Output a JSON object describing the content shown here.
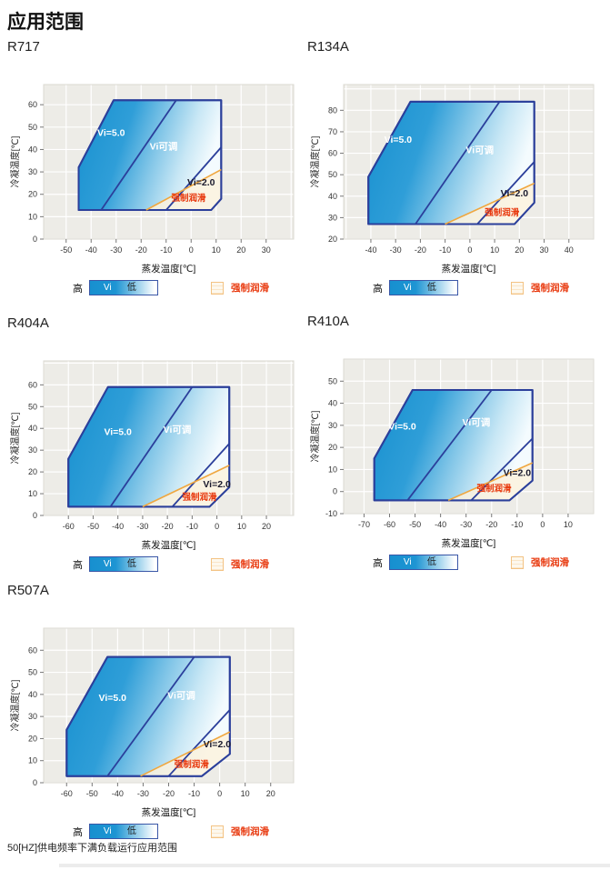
{
  "page": {
    "title": "应用范围",
    "footnote": "50[HZ]供电频率下满负载运行应用范围"
  },
  "axis": {
    "x_label": "蒸发温度[℃]",
    "y_label": "冷凝温度[℃]"
  },
  "legend": {
    "high": "高",
    "vi": "Vi",
    "low": "低",
    "forced_lubrication": "强制润滑"
  },
  "colors": {
    "region_blue": "#1790cf",
    "border_navy": "#2b3f9b",
    "orange_line": "#f0a73f",
    "red_text": "#e8380d",
    "plot_bg": "#edece7",
    "grid": "#ffffff"
  },
  "chart_data": [
    {
      "type": "area",
      "name": "R717",
      "x_range": [
        -59,
        41
      ],
      "y_range": [
        0,
        69
      ],
      "x_ticks": [
        -50,
        -40,
        -30,
        -20,
        -10,
        0,
        10,
        20,
        30
      ],
      "y_ticks": [
        0,
        10,
        20,
        30,
        40,
        50,
        60
      ],
      "envelope": [
        [
          -45,
          13
        ],
        [
          -45,
          32
        ],
        [
          -31,
          62
        ],
        [
          12,
          62
        ],
        [
          12,
          18
        ],
        [
          8,
          13
        ]
      ],
      "vi5_line": [
        [
          -36,
          13
        ],
        [
          -6,
          62
        ]
      ],
      "vi2_line": [
        [
          -10,
          13
        ],
        [
          12,
          41
        ]
      ],
      "forced_line": [
        [
          -18,
          13
        ],
        [
          12,
          31
        ]
      ],
      "forced_region": [
        [
          -18,
          13
        ],
        [
          12,
          31
        ],
        [
          12,
          18
        ],
        [
          8,
          13
        ]
      ],
      "labels": {
        "vi5": {
          "text": "Vi=5.0",
          "x": -32,
          "y": 46
        },
        "vi_adj": {
          "text": "Vi可调",
          "x": -11,
          "y": 40
        },
        "vi2": {
          "text": "Vi=2.0",
          "x": 4,
          "y": 24
        },
        "forced": {
          "text": "强制润滑",
          "x": -1,
          "y": 17
        }
      }
    },
    {
      "type": "area",
      "name": "R134A",
      "x_range": [
        -51,
        50
      ],
      "y_range": [
        20,
        92
      ],
      "x_ticks": [
        -40,
        -30,
        -20,
        -10,
        0,
        10,
        20,
        30,
        40
      ],
      "y_ticks": [
        20,
        30,
        40,
        50,
        60,
        70,
        80
      ],
      "envelope": [
        [
          -41,
          27
        ],
        [
          -41,
          49
        ],
        [
          -24,
          84
        ],
        [
          26,
          84
        ],
        [
          26,
          37
        ],
        [
          18,
          27
        ]
      ],
      "vi5_line": [
        [
          -22,
          27
        ],
        [
          12,
          84
        ]
      ],
      "vi2_line": [
        [
          3,
          27
        ],
        [
          26,
          56
        ]
      ],
      "forced_line": [
        [
          -10,
          27
        ],
        [
          26,
          46
        ]
      ],
      "forced_region": [
        [
          -10,
          27
        ],
        [
          26,
          46
        ],
        [
          26,
          37
        ],
        [
          18,
          27
        ]
      ],
      "labels": {
        "vi5": {
          "text": "Vi=5.0",
          "x": -29,
          "y": 65
        },
        "vi_adj": {
          "text": "Vi可调",
          "x": 4,
          "y": 60
        },
        "vi2": {
          "text": "Vi=2.0",
          "x": 18,
          "y": 40
        },
        "forced": {
          "text": "强制润滑",
          "x": 13,
          "y": 31
        }
      }
    },
    {
      "type": "area",
      "name": "R404A",
      "x_range": [
        -70,
        31
      ],
      "y_range": [
        0,
        71
      ],
      "x_ticks": [
        -60,
        -50,
        -40,
        -30,
        -20,
        -10,
        0,
        10,
        20
      ],
      "y_ticks": [
        0,
        10,
        20,
        30,
        40,
        50,
        60
      ],
      "envelope": [
        [
          -60,
          4
        ],
        [
          -60,
          26
        ],
        [
          -44,
          59
        ],
        [
          5,
          59
        ],
        [
          5,
          13
        ],
        [
          -3,
          4
        ]
      ],
      "vi5_line": [
        [
          -43,
          4
        ],
        [
          -10,
          59
        ]
      ],
      "vi2_line": [
        [
          -18,
          4
        ],
        [
          5,
          33
        ]
      ],
      "forced_line": [
        [
          -30,
          4
        ],
        [
          5,
          23
        ]
      ],
      "forced_region": [
        [
          -30,
          4
        ],
        [
          5,
          23
        ],
        [
          5,
          13
        ],
        [
          -3,
          4
        ]
      ],
      "labels": {
        "vi5": {
          "text": "Vi=5.0",
          "x": -40,
          "y": 37
        },
        "vi_adj": {
          "text": "Vi可调",
          "x": -16,
          "y": 38
        },
        "vi2": {
          "text": "Vi=2.0",
          "x": 0,
          "y": 13
        },
        "forced": {
          "text": "强制润滑",
          "x": -7,
          "y": 7
        }
      }
    },
    {
      "type": "area",
      "name": "R410A",
      "x_range": [
        -78,
        20
      ],
      "y_range": [
        -10,
        60
      ],
      "x_ticks": [
        -70,
        -60,
        -50,
        -40,
        -30,
        -20,
        -10,
        0,
        10
      ],
      "y_ticks": [
        -10,
        0,
        10,
        20,
        30,
        40,
        50
      ],
      "envelope": [
        [
          -66,
          -4
        ],
        [
          -66,
          15
        ],
        [
          -51,
          46
        ],
        [
          -4,
          46
        ],
        [
          -4,
          5
        ],
        [
          -13,
          -4
        ]
      ],
      "vi5_line": [
        [
          -53,
          -4
        ],
        [
          -20,
          46
        ]
      ],
      "vi2_line": [
        [
          -28,
          -4
        ],
        [
          -4,
          24
        ]
      ],
      "forced_line": [
        [
          -37,
          -4
        ],
        [
          -4,
          13
        ]
      ],
      "forced_region": [
        [
          -37,
          -4
        ],
        [
          -4,
          13
        ],
        [
          -4,
          5
        ],
        [
          -13,
          -4
        ]
      ],
      "labels": {
        "vi5": {
          "text": "Vi=5.0",
          "x": -55,
          "y": 28
        },
        "vi_adj": {
          "text": "Vi可调",
          "x": -26,
          "y": 30
        },
        "vi2": {
          "text": "Vi=2.0",
          "x": -10,
          "y": 7
        },
        "forced": {
          "text": "强制润滑",
          "x": -19,
          "y": 0
        }
      }
    },
    {
      "type": "area",
      "name": "R507A",
      "x_range": [
        -69,
        29
      ],
      "y_range": [
        0,
        70
      ],
      "x_ticks": [
        -60,
        -50,
        -40,
        -30,
        -20,
        -10,
        0,
        10,
        20
      ],
      "y_ticks": [
        0,
        10,
        20,
        30,
        40,
        50,
        60
      ],
      "envelope": [
        [
          -60,
          3
        ],
        [
          -60,
          24
        ],
        [
          -44,
          57
        ],
        [
          4,
          57
        ],
        [
          4,
          13
        ],
        [
          -7,
          3
        ]
      ],
      "vi5_line": [
        [
          -44,
          3
        ],
        [
          -10,
          57
        ]
      ],
      "vi2_line": [
        [
          -20,
          3
        ],
        [
          4,
          33
        ]
      ],
      "forced_line": [
        [
          -31,
          3
        ],
        [
          4,
          23
        ]
      ],
      "forced_region": [
        [
          -31,
          3
        ],
        [
          4,
          23
        ],
        [
          4,
          13
        ],
        [
          -7,
          3
        ]
      ],
      "labels": {
        "vi5": {
          "text": "Vi=5.0",
          "x": -42,
          "y": 37
        },
        "vi_adj": {
          "text": "Vi可调",
          "x": -15,
          "y": 38
        },
        "vi2": {
          "text": "Vi=2.0",
          "x": -1,
          "y": 16
        },
        "forced": {
          "text": "强制润滑",
          "x": -11,
          "y": 7
        }
      }
    }
  ]
}
